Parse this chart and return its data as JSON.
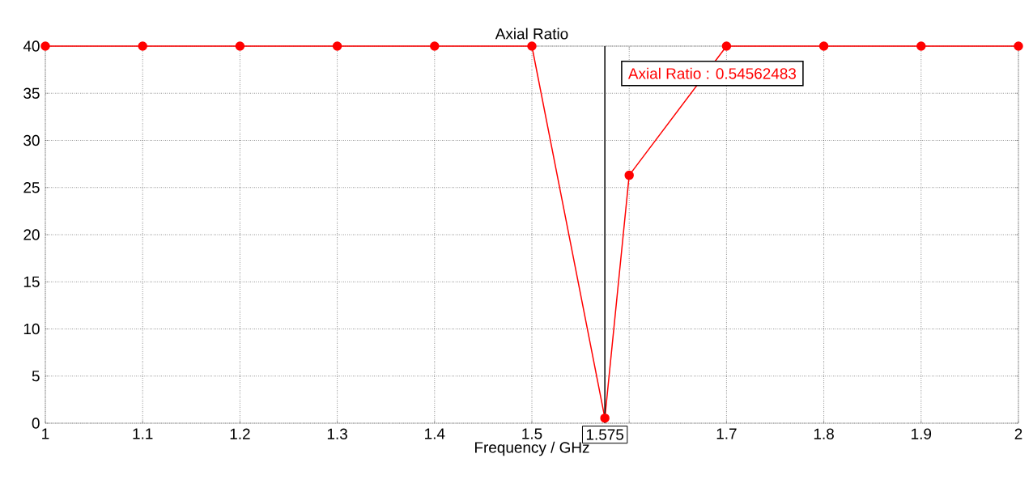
{
  "chart_data": {
    "type": "line",
    "title": "Axial Ratio",
    "xlabel": "Frequency / GHz",
    "x": [
      1,
      1.1,
      1.2,
      1.3,
      1.4,
      1.5,
      1.575,
      1.6,
      1.7,
      1.8,
      1.9,
      2
    ],
    "series": [
      {
        "color": "#ff0000",
        "values": [
          40,
          40,
          40,
          40,
          40,
          40,
          0.54562483,
          26.3,
          40,
          40,
          40,
          40
        ]
      }
    ],
    "xlim": [
      1,
      2
    ],
    "ylim": [
      0,
      40
    ],
    "xticks": [
      1,
      1.1,
      1.2,
      1.3,
      1.4,
      1.5,
      {
        "value": 1.6,
        "label": null
      },
      1.7,
      1.8,
      1.9,
      2
    ],
    "yticks": [
      0,
      5,
      10,
      15,
      20,
      25,
      30,
      35,
      40
    ],
    "grid": true,
    "marker": "circle",
    "line_style": "solid",
    "ref_lines": [
      {
        "axis": "x",
        "value": 1.575,
        "label": "1.575",
        "color": "#000000"
      }
    ],
    "annotations": [
      "Axial Ratio : 0.54562483"
    ]
  }
}
